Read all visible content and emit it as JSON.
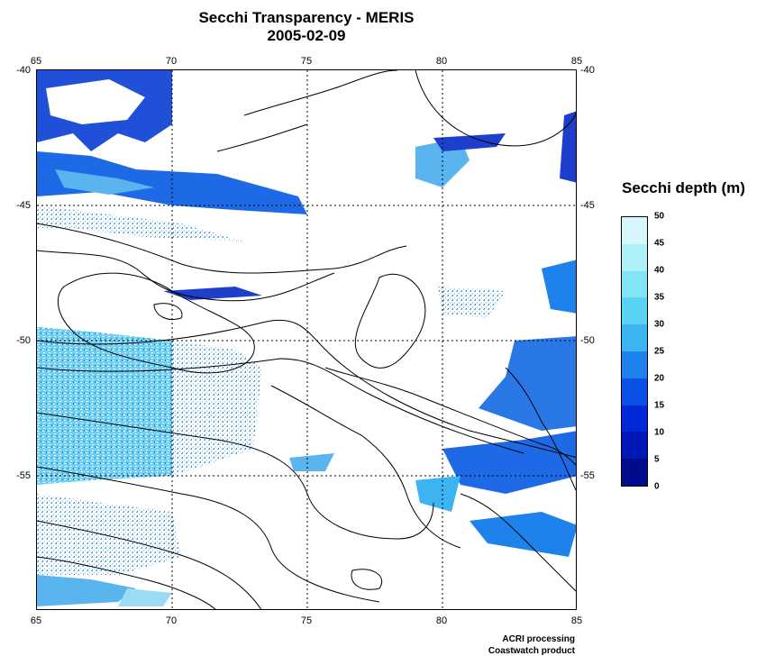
{
  "title": {
    "line1": "Secchi Transparency - MERIS",
    "line2": "2005-02-09"
  },
  "map": {
    "lon_range": [
      65,
      85
    ],
    "lat_range": [
      -60,
      -40
    ],
    "lon_ticks": [
      "65",
      "70",
      "75",
      "80",
      "85"
    ],
    "lat_ticks": [
      "-40",
      "-45",
      "-50",
      "-55"
    ],
    "grid": "dotted"
  },
  "colorbar": {
    "title": "Secchi depth (m)",
    "labels": [
      "0",
      "5",
      "10",
      "15",
      "20",
      "25",
      "30",
      "35",
      "40",
      "45",
      "50"
    ],
    "colors": [
      "#000c8c",
      "#0018b8",
      "#0028d8",
      "#0a50e6",
      "#1e82ec",
      "#3cb4f0",
      "#5ad2f2",
      "#82e4f4",
      "#aef0f8",
      "#d6f8fc"
    ]
  },
  "credit": {
    "line1": "ACRI processing",
    "line2": "Coastwatch product"
  }
}
